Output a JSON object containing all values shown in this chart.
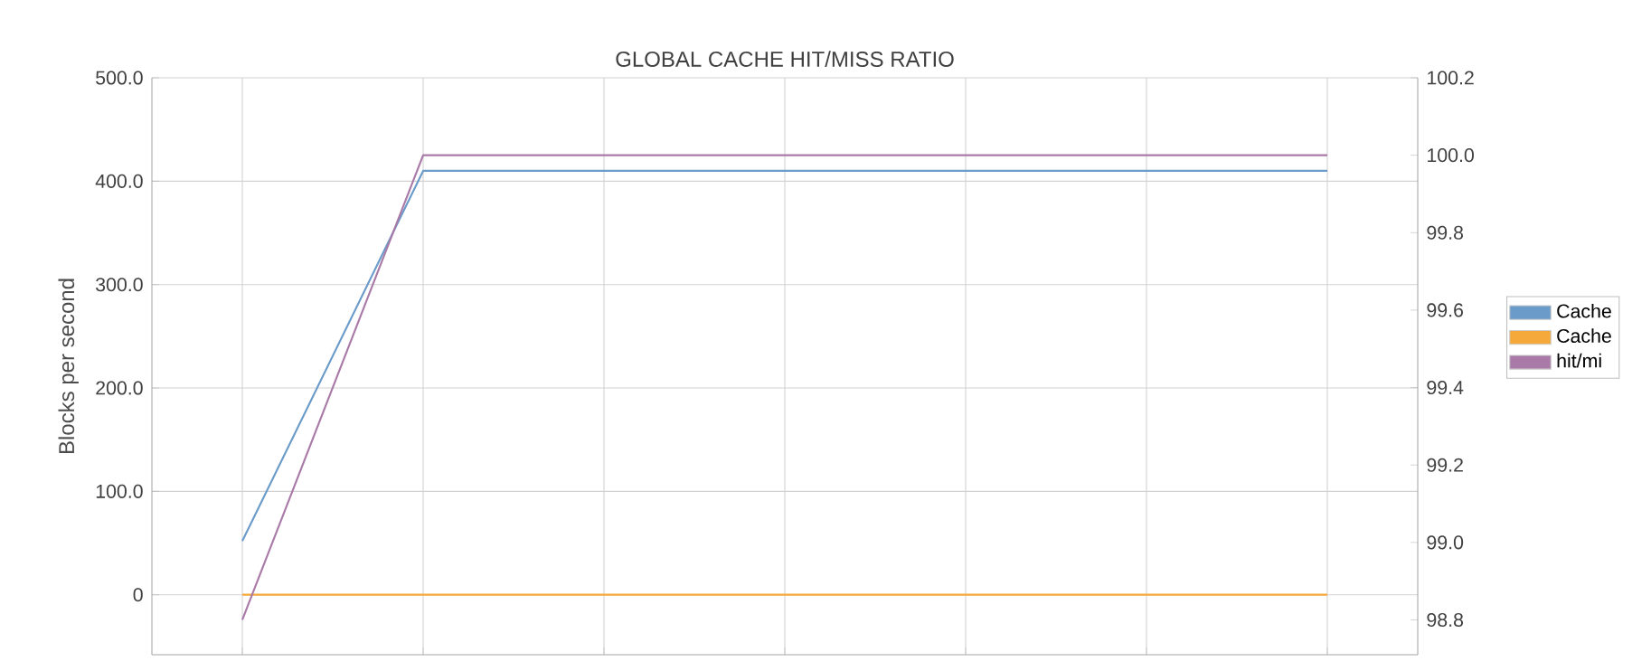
{
  "chart_data": {
    "type": "line",
    "title": "GLOBAL CACHE HIT/MISS RATIO",
    "ylabel": "Blocks per second",
    "categories": [
      null,
      null,
      null,
      null,
      null,
      null,
      null
    ],
    "series": [
      {
        "name": "Cache",
        "color": "#6b9bc9",
        "values": [
          52,
          410,
          410,
          410,
          410,
          410,
          410
        ]
      },
      {
        "name": "Cache",
        "color": "#f4a93a",
        "values": [
          0,
          0,
          0,
          0,
          0,
          0,
          0
        ]
      },
      {
        "name": "hit/mi",
        "color": "#a97aa7",
        "axis": "y2",
        "values": [
          98.8,
          100.0,
          100.0,
          100.0,
          100.0,
          100.0,
          100.0
        ]
      }
    ],
    "ylim": [
      -58,
      500
    ],
    "yticks": [
      0,
      {
        "value": 100,
        "label": "100.0"
      },
      {
        "value": 200,
        "label": "200.0"
      },
      {
        "value": 300,
        "label": "300.0"
      },
      {
        "value": 400,
        "label": "400.0"
      },
      {
        "value": 500,
        "label": "500.0"
      }
    ],
    "y2lim": [
      98.71,
      100.2
    ],
    "y2ticks": [
      98.8,
      {
        "value": 99.0,
        "label": "99.0"
      },
      99.2,
      99.4,
      99.6,
      99.8,
      {
        "value": 100.0,
        "label": "100.0"
      },
      100.2
    ],
    "grid": true,
    "legend": "right"
  }
}
